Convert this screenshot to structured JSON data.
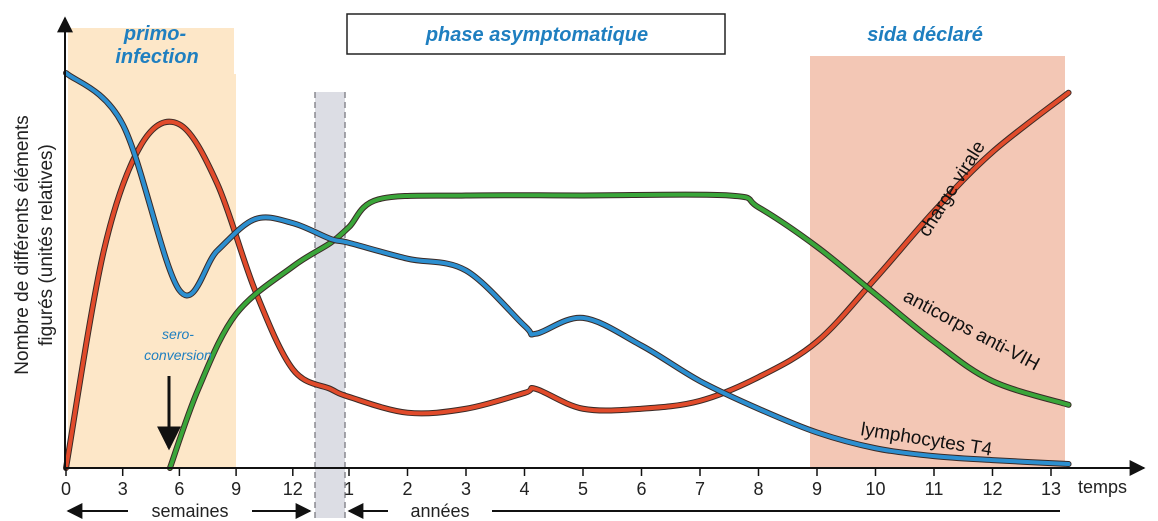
{
  "chart_data": {
    "type": "line",
    "ylabel_line1": "Nombre de différents éléments",
    "ylabel_line2": "figurés (unités relatives)",
    "xlabel": "temps",
    "ticks_weeks": [
      "0",
      "3",
      "6",
      "9",
      "12"
    ],
    "ticks_years": [
      "1",
      "2",
      "3",
      "4",
      "5",
      "6",
      "7",
      "8",
      "9",
      "10",
      "11",
      "12",
      "13"
    ],
    "unit_weeks": "semaines",
    "unit_years": "années",
    "phases": {
      "primo_line1": "primo-",
      "primo_line2": "infection",
      "asymptomatic": "phase asymptomatique",
      "aids": "sida déclaré"
    },
    "seroconversion_line1": "sero-",
    "seroconversion_line2": "conversion",
    "colors": {
      "primo_band": "#fde7c8",
      "aids_band": "#f3c7b5",
      "break_band": "#dcdde4",
      "viral": "#e14b2b",
      "antibody": "#3aa63a",
      "t4": "#2c8fd0",
      "phase_text": "#1f7fc0"
    },
    "series": [
      {
        "name": "charge virale",
        "weeks": [
          [
            0,
            0
          ],
          [
            2,
            55
          ],
          [
            4,
            82
          ],
          [
            6,
            87
          ],
          [
            8,
            72
          ],
          [
            10,
            45
          ],
          [
            12,
            25
          ],
          [
            14,
            20
          ]
        ],
        "years": [
          [
            1,
            18
          ],
          [
            2,
            14
          ],
          [
            3,
            15
          ],
          [
            4,
            19
          ],
          [
            4.2,
            20
          ],
          [
            5,
            15
          ],
          [
            6,
            15
          ],
          [
            7,
            17
          ],
          [
            8,
            23
          ],
          [
            9,
            32
          ],
          [
            10,
            48
          ],
          [
            11,
            65
          ],
          [
            12,
            80
          ],
          [
            13.3,
            95
          ]
        ]
      },
      {
        "name": "anticorps anti-VIH",
        "weeks": [
          [
            5.5,
            0
          ],
          [
            7,
            20
          ],
          [
            9,
            39
          ],
          [
            12,
            51
          ],
          [
            14,
            57
          ]
        ],
        "years": [
          [
            1,
            61
          ],
          [
            1.5,
            68
          ],
          [
            3,
            69
          ],
          [
            5,
            69
          ],
          [
            7.5,
            69
          ],
          [
            8,
            66
          ],
          [
            9,
            56
          ],
          [
            10,
            44
          ],
          [
            11,
            32
          ],
          [
            12,
            22
          ],
          [
            13.3,
            16
          ]
        ]
      },
      {
        "name": "lymphocytes T4",
        "weeks": [
          [
            0,
            100
          ],
          [
            3,
            87
          ],
          [
            6,
            45
          ],
          [
            8,
            55
          ],
          [
            10,
            63
          ],
          [
            12,
            62
          ],
          [
            14,
            58
          ]
        ],
        "years": [
          [
            1,
            57
          ],
          [
            2,
            53
          ],
          [
            3,
            50
          ],
          [
            4,
            36
          ],
          [
            4.2,
            34
          ],
          [
            5,
            38
          ],
          [
            6,
            31
          ],
          [
            7,
            22
          ],
          [
            8,
            15
          ],
          [
            9,
            9
          ],
          [
            10,
            5
          ],
          [
            11,
            3
          ],
          [
            12,
            2
          ],
          [
            13.3,
            1
          ]
        ]
      }
    ]
  }
}
